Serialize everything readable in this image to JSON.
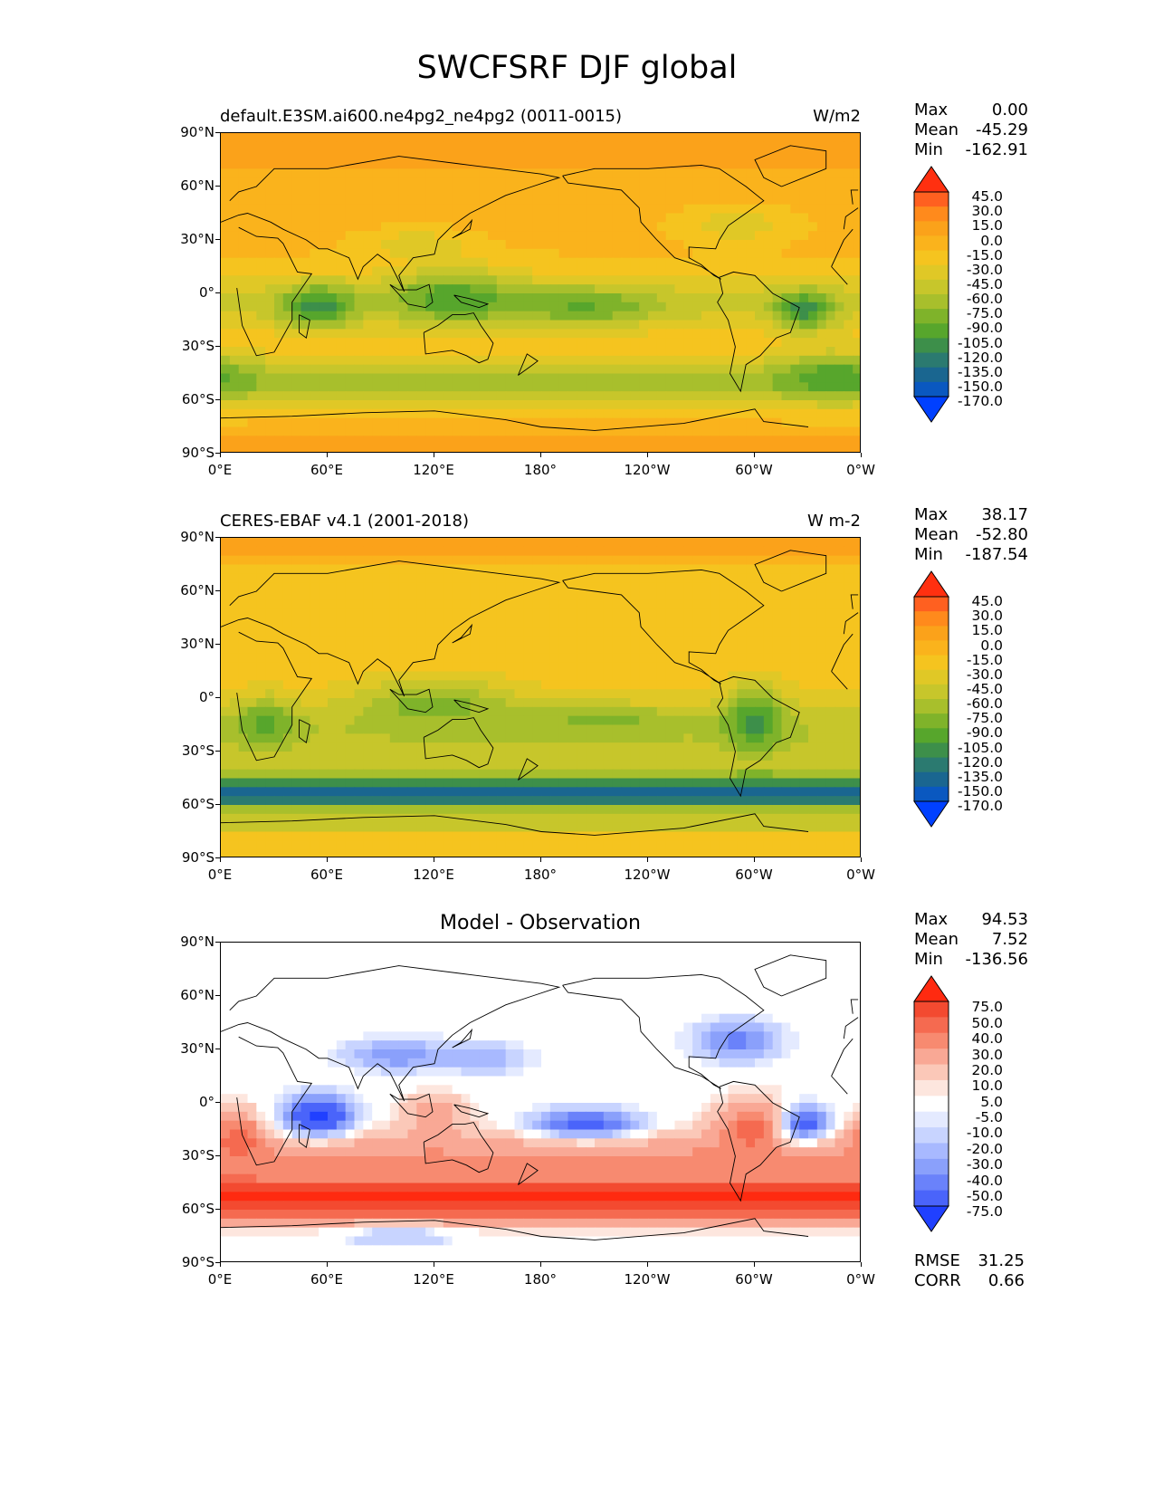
{
  "figure_title": "SWCFSRF DJF global",
  "panels": [
    {
      "left_title": "default.E3SM.ai600.ne4pg2_ne4pg2 (0011-0015)",
      "units": "W/m2",
      "center_title": "",
      "stats": {
        "max_label": "Max",
        "max": "0.00",
        "mean_label": "Mean",
        "mean": "-45.29",
        "min_label": "Min",
        "min": "-162.91"
      },
      "colorbar_ticks": [
        "45.0",
        "30.0",
        "15.0",
        "0.0",
        "-15.0",
        "-30.0",
        "-45.0",
        "-60.0",
        "-75.0",
        "-90.0",
        "-105.0",
        "-120.0",
        "-135.0",
        "-150.0",
        "-170.0"
      ],
      "colorbar_colors": [
        "#ff3010",
        "#ff6020",
        "#ff8a1c",
        "#fba21a",
        "#fab31c",
        "#f5c41f",
        "#e0c826",
        "#c7c62b",
        "#a8bf2c",
        "#7fb32a",
        "#57a62c",
        "#3d8f4a",
        "#2b7a70",
        "#1a6690",
        "#0a58c0",
        "#0040ff"
      ],
      "field": "model",
      "show_cb_extension": true
    },
    {
      "left_title": "CERES-EBAF v4.1 (2001-2018)",
      "units": "W m-2",
      "center_title": "",
      "stats": {
        "max_label": "Max",
        "max": "38.17",
        "mean_label": "Mean",
        "mean": "-52.80",
        "min_label": "Min",
        "min": "-187.54"
      },
      "colorbar_ticks": [
        "45.0",
        "30.0",
        "15.0",
        "0.0",
        "-15.0",
        "-30.0",
        "-45.0",
        "-60.0",
        "-75.0",
        "-90.0",
        "-105.0",
        "-120.0",
        "-135.0",
        "-150.0",
        "-170.0"
      ],
      "colorbar_colors": [
        "#ff3010",
        "#ff6020",
        "#ff8a1c",
        "#fba21a",
        "#fab31c",
        "#f5c41f",
        "#e0c826",
        "#c7c62b",
        "#a8bf2c",
        "#7fb32a",
        "#57a62c",
        "#3d8f4a",
        "#2b7a70",
        "#1a6690",
        "#0a58c0",
        "#0040ff"
      ],
      "field": "obs",
      "show_cb_extension": true
    },
    {
      "left_title": "",
      "units": "",
      "center_title": "Model - Observation",
      "stats": {
        "max_label": "Max",
        "max": "94.53",
        "mean_label": "Mean",
        "mean": "7.52",
        "min_label": "Min",
        "min": "-136.56"
      },
      "colorbar_ticks": [
        "75.0",
        "50.0",
        "40.0",
        "30.0",
        "20.0",
        "10.0",
        "5.0",
        "-5.0",
        "-10.0",
        "-20.0",
        "-30.0",
        "-40.0",
        "-50.0",
        "-75.0"
      ],
      "colorbar_colors": [
        "#ff2a10",
        "#f34a30",
        "#f56a50",
        "#f78a70",
        "#f9a895",
        "#fbc8b8",
        "#fde6de",
        "#ffffff",
        "#e4eaff",
        "#c8d4ff",
        "#a8b9ff",
        "#8aa0fb",
        "#6a82fa",
        "#4a64fa",
        "#2040ff"
      ],
      "field": "diff",
      "rmse_label": "RMSE",
      "rmse": "31.25",
      "corr_label": "CORR",
      "corr": "0.66"
    }
  ],
  "axes": {
    "y_ticks": [
      "90°N",
      "60°N",
      "30°N",
      "0°",
      "30°S",
      "60°S",
      "90°S"
    ],
    "x_ticks": [
      "0°E",
      "60°E",
      "120°E",
      "180°",
      "120°W",
      "60°W",
      "0°W"
    ]
  },
  "chart_data": [
    {
      "type": "heatmap",
      "title": "default.E3SM.ai600.ne4pg2_ne4pg2 (0011-0015)",
      "units": "W/m2",
      "xlim": [
        0,
        360
      ],
      "ylim": [
        -90,
        90
      ],
      "stats": {
        "max": 0.0,
        "mean": -45.29,
        "min": -162.91
      },
      "levels": [
        -170,
        -150,
        -135,
        -120,
        -105,
        -90,
        -75,
        -60,
        -45,
        -30,
        -15,
        0,
        15,
        30,
        45
      ]
    },
    {
      "type": "heatmap",
      "title": "CERES-EBAF v4.1 (2001-2018)",
      "units": "W m-2",
      "xlim": [
        0,
        360
      ],
      "ylim": [
        -90,
        90
      ],
      "stats": {
        "max": 38.17,
        "mean": -52.8,
        "min": -187.54
      },
      "levels": [
        -170,
        -150,
        -135,
        -120,
        -105,
        -90,
        -75,
        -60,
        -45,
        -30,
        -15,
        0,
        15,
        30,
        45
      ]
    },
    {
      "type": "heatmap",
      "title": "Model - Observation",
      "xlim": [
        0,
        360
      ],
      "ylim": [
        -90,
        90
      ],
      "stats": {
        "max": 94.53,
        "mean": 7.52,
        "min": -136.56,
        "rmse": 31.25,
        "corr": 0.66
      },
      "levels": [
        -75,
        -50,
        -40,
        -30,
        -20,
        -10,
        -5,
        5,
        10,
        20,
        30,
        40,
        50,
        75
      ]
    }
  ]
}
